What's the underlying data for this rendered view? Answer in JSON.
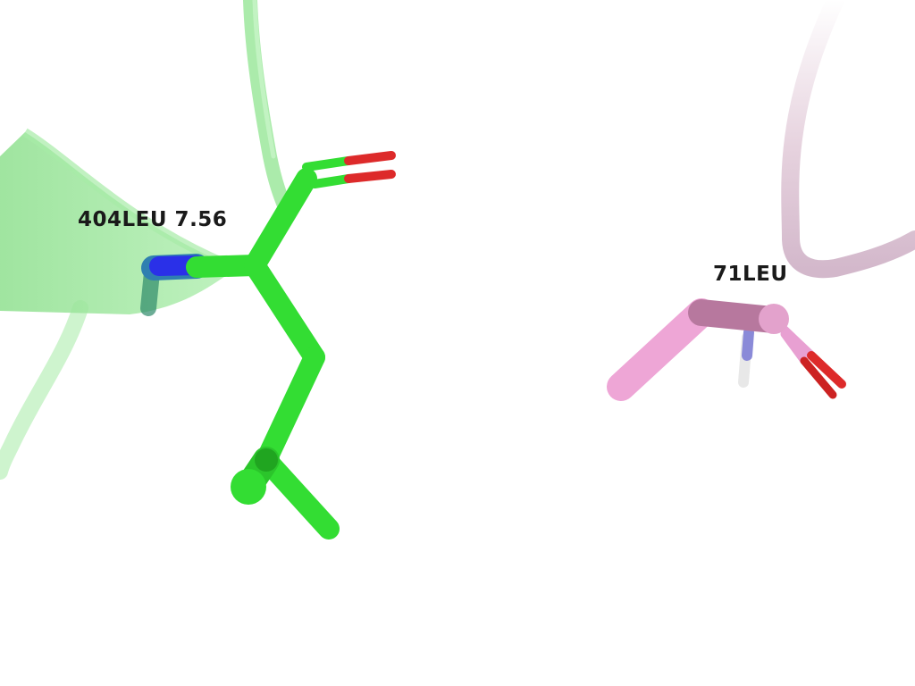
{
  "scene": {
    "background": "#ffffff",
    "residues": [
      {
        "label": "404LEU 7.56",
        "color": "#33dd33"
      },
      {
        "label": "71LEU",
        "color": "#e8a0d2"
      }
    ],
    "element_colors": {
      "nitrogen": "#2233ee",
      "oxygen": "#dd2222",
      "hydrogen": "#e8e8e8"
    },
    "ribbon_colors": [
      "#9ae89a",
      "#d8bcd0"
    ]
  }
}
